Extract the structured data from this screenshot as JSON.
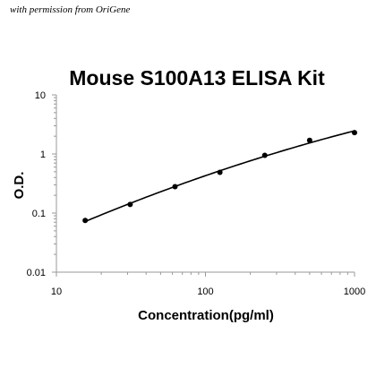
{
  "attribution": "with permission from OriGene",
  "chart_data": {
    "type": "scatter",
    "title": "Mouse S100A13 ELISA Kit",
    "xlabel": "Concentration(pg/ml)",
    "ylabel": "O.D.",
    "xscale": "log",
    "yscale": "log",
    "xlim": [
      10,
      1000
    ],
    "ylim": [
      0.01,
      10
    ],
    "x_ticks": [
      "10",
      "100",
      "1000"
    ],
    "y_ticks": [
      "0.01",
      "0.1",
      "1",
      "10"
    ],
    "grid": false,
    "legend": "none",
    "fit_curve": true,
    "series": [
      {
        "x": [
          15.6,
          31.25,
          62.5,
          125,
          250,
          500,
          1000
        ],
        "y": [
          0.075,
          0.14,
          0.28,
          0.49,
          0.95,
          1.7,
          2.3
        ]
      }
    ]
  }
}
